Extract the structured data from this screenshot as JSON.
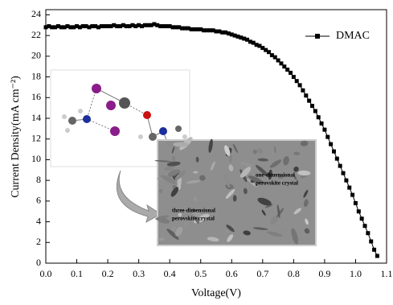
{
  "chart_data": {
    "type": "line",
    "xlabel": "Voltage(V)",
    "ylabel": "Current Density(mA cm⁻²)",
    "annotations": [
      "one-dimensional",
      "perovskite crystal",
      "three-dimensional",
      "perovskite crystal"
    ],
    "x": [
      0.0,
      0.01,
      0.02,
      0.03,
      0.04,
      0.05,
      0.06,
      0.07,
      0.08,
      0.09,
      0.1,
      0.11,
      0.12,
      0.13,
      0.14,
      0.15,
      0.16,
      0.17,
      0.18,
      0.19,
      0.2,
      0.21,
      0.22,
      0.23,
      0.24,
      0.25,
      0.26,
      0.27,
      0.28,
      0.29,
      0.3,
      0.31,
      0.32,
      0.33,
      0.34,
      0.35,
      0.36,
      0.37,
      0.38,
      0.39,
      0.4,
      0.41,
      0.42,
      0.43,
      0.44,
      0.45,
      0.46,
      0.47,
      0.48,
      0.49,
      0.5,
      0.51,
      0.52,
      0.53,
      0.54,
      0.55,
      0.56,
      0.57,
      0.58,
      0.59,
      0.6,
      0.61,
      0.62,
      0.63,
      0.64,
      0.65,
      0.66,
      0.67,
      0.68,
      0.69,
      0.7,
      0.71,
      0.72,
      0.73,
      0.74,
      0.75,
      0.76,
      0.77,
      0.78,
      0.79,
      0.8,
      0.81,
      0.82,
      0.83,
      0.84,
      0.85,
      0.86,
      0.87,
      0.88,
      0.89,
      0.9,
      0.91,
      0.92,
      0.93,
      0.94,
      0.95,
      0.96,
      0.97,
      0.98,
      0.99,
      1.0,
      1.01,
      1.02,
      1.03,
      1.04,
      1.05,
      1.06,
      1.07
    ],
    "series": [
      {
        "name": "DMAC",
        "color": "#000000",
        "values": [
          22.8,
          22.9,
          22.8,
          22.8,
          22.9,
          22.8,
          22.8,
          22.9,
          22.8,
          22.8,
          22.9,
          22.8,
          22.9,
          22.9,
          22.8,
          22.9,
          22.9,
          22.8,
          22.9,
          22.9,
          22.9,
          22.9,
          23.0,
          22.9,
          22.9,
          23.0,
          22.9,
          22.9,
          23.0,
          22.9,
          23.0,
          22.9,
          23.0,
          23.0,
          23.0,
          23.1,
          23.0,
          22.9,
          22.9,
          22.9,
          22.9,
          22.8,
          22.8,
          22.8,
          22.7,
          22.7,
          22.7,
          22.6,
          22.6,
          22.6,
          22.6,
          22.5,
          22.5,
          22.5,
          22.5,
          22.4,
          22.4,
          22.3,
          22.3,
          22.2,
          22.1,
          22.0,
          21.9,
          21.8,
          21.7,
          21.6,
          21.4,
          21.3,
          21.1,
          21.0,
          20.8,
          20.6,
          20.4,
          20.1,
          19.9,
          19.6,
          19.3,
          19.0,
          18.7,
          18.4,
          18.0,
          17.6,
          17.2,
          16.7,
          16.2,
          15.7,
          15.2,
          14.7,
          14.1,
          13.5,
          12.9,
          12.2,
          11.5,
          10.8,
          10.1,
          9.4,
          8.7,
          8.0,
          7.3,
          6.6,
          5.8,
          5.0,
          4.3,
          3.6,
          2.9,
          2.1,
          1.3,
          0.7
        ]
      }
    ],
    "xlim": [
      0,
      1.1
    ],
    "ylim": [
      0,
      24.5
    ],
    "xticks": [
      {
        "value": 0,
        "label": "0.0"
      },
      0.1,
      0.2,
      0.3,
      0.4,
      0.5,
      0.6,
      0.7,
      0.8,
      0.9,
      {
        "value": 1,
        "label": "1.0"
      },
      1.1
    ],
    "yticks": [
      0,
      2,
      4,
      6,
      8,
      10,
      12,
      14,
      16,
      18,
      20,
      22,
      24
    ],
    "legend": "upper right"
  }
}
